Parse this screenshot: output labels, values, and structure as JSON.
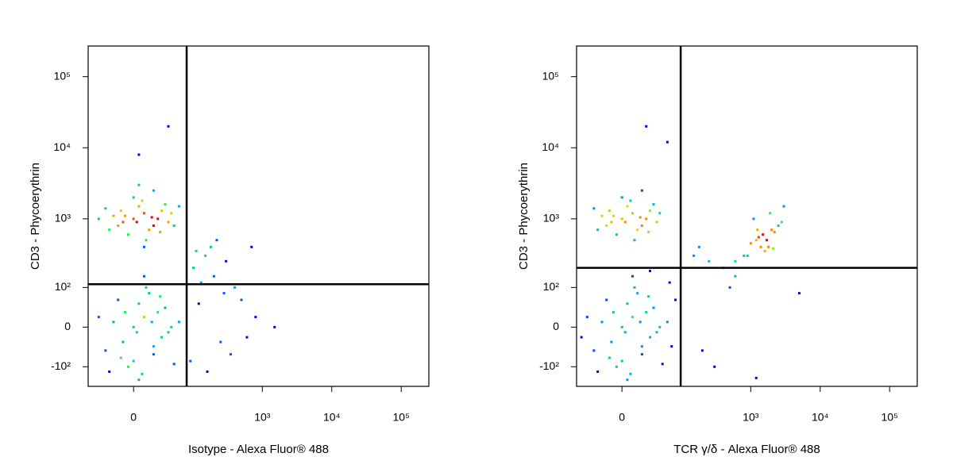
{
  "chart_data": [
    {
      "type": "scatter",
      "xscale": "biexponential",
      "yscale": "biexponential",
      "x_label": "Isotype - Alexa Fluor® 488",
      "y_label": "CD3 - Phycoerythrin",
      "xlim": [
        -60,
        250000
      ],
      "ylim": [
        -200,
        270000
      ],
      "xticks": [
        0,
        {
          "value": 1000,
          "label": "10³"
        },
        {
          "value": 10000,
          "label": "10⁴"
        },
        {
          "value": 100000,
          "label": "10⁵"
        }
      ],
      "yticks": [
        {
          "value": -100,
          "label": "-10²"
        },
        0,
        {
          "value": 100,
          "label": "10²"
        },
        {
          "value": 1000,
          "label": "10³"
        },
        {
          "value": 10000,
          "label": "10⁴"
        },
        {
          "value": 100000,
          "label": "10⁵"
        }
      ],
      "gates": {
        "x": 79,
        "y": 113
      },
      "x": [
        0,
        10,
        -10,
        20,
        5,
        -20,
        30,
        15,
        -5,
        25,
        40,
        -30,
        8,
        -15,
        35,
        0,
        12,
        -25,
        45,
        20,
        -8,
        3,
        18,
        -12,
        28,
        50,
        -40,
        10,
        60,
        5,
        0,
        10,
        -10,
        20,
        5,
        -20,
        30,
        15,
        -5,
        25,
        40,
        -30,
        8,
        -15,
        35,
        0,
        12,
        -25,
        45,
        20,
        -8,
        3,
        18,
        -12,
        28,
        50,
        -40,
        10,
        60,
        5,
        100,
        150,
        200,
        300,
        120,
        250,
        400,
        180,
        500,
        90,
        350,
        700,
        130,
        220,
        800,
        600,
        160,
        280,
        1500,
        110,
        5,
        40
      ],
      "y": [
        1000,
        1200,
        900,
        800,
        1500,
        1100,
        1300,
        700,
        600,
        1000,
        900,
        1400,
        1800,
        800,
        1600,
        2000,
        500,
        700,
        1200,
        2500,
        1100,
        900,
        1050,
        1300,
        650,
        800,
        1000,
        400,
        1500,
        3000,
        0,
        20,
        -30,
        -60,
        50,
        10,
        -20,
        80,
        -100,
        30,
        -10,
        -50,
        -130,
        60,
        40,
        -80,
        100,
        -120,
        0,
        -40,
        30,
        -10,
        10,
        -70,
        70,
        -90,
        20,
        150,
        10,
        -160,
        200,
        300,
        150,
        250,
        50,
        -30,
        100,
        400,
        60,
        -80,
        -60,
        400,
        120,
        500,
        20,
        -20,
        -120,
        80,
        0,
        350,
        8000,
        20000
      ]
    },
    {
      "type": "scatter",
      "xscale": "biexponential",
      "yscale": "biexponential",
      "x_label": "TCR γ/δ - Alexa Fluor® 488",
      "y_label": "CD3 - Phycoerythrin",
      "xlim": [
        -60,
        250000
      ],
      "ylim": [
        -200,
        270000
      ],
      "xticks": [
        0,
        {
          "value": 1000,
          "label": "10³"
        },
        {
          "value": 10000,
          "label": "10⁴"
        },
        {
          "value": 100000,
          "label": "10⁵"
        }
      ],
      "yticks": [
        {
          "value": -100,
          "label": "-10²"
        },
        0,
        {
          "value": 100,
          "label": "10²"
        },
        {
          "value": 1000,
          "label": "10³"
        },
        {
          "value": 10000,
          "label": "10⁴"
        },
        {
          "value": 100000,
          "label": "10⁵"
        }
      ],
      "gates": {
        "x": 96,
        "y": 200
      },
      "x": [
        0,
        10,
        -10,
        20,
        5,
        -20,
        30,
        15,
        -5,
        25,
        40,
        -30,
        8,
        -15,
        35,
        0,
        12,
        -25,
        45,
        20,
        -8,
        3,
        18,
        -12,
        28,
        0,
        10,
        -10,
        20,
        5,
        -20,
        30,
        15,
        -5,
        25,
        40,
        -30,
        8,
        -15,
        35,
        0,
        12,
        -25,
        45,
        20,
        -8,
        3,
        18,
        -12,
        28,
        50,
        -40,
        10,
        60,
        5,
        70,
        80,
        -50,
        65,
        30,
        1200,
        1500,
        1800,
        2000,
        1000,
        2500,
        1300,
        1600,
        900,
        2200,
        1100,
        1700,
        1400,
        2800,
        800,
        1900,
        600,
        3000,
        1250,
        2100,
        150,
        250,
        400,
        200,
        600,
        300,
        500,
        180,
        1200,
        5000,
        25,
        60
      ],
      "y": [
        1000,
        1200,
        900,
        800,
        1500,
        1100,
        1300,
        700,
        600,
        1000,
        900,
        1400,
        1800,
        800,
        1600,
        2000,
        500,
        700,
        1200,
        2500,
        1100,
        900,
        1050,
        1300,
        650,
        0,
        20,
        -30,
        -60,
        50,
        10,
        -20,
        80,
        -100,
        30,
        -10,
        -50,
        -130,
        60,
        40,
        -80,
        100,
        -120,
        0,
        -40,
        30,
        -10,
        10,
        -70,
        70,
        -90,
        20,
        150,
        10,
        -160,
        -40,
        60,
        -20,
        120,
        180,
        500,
        600,
        400,
        700,
        450,
        800,
        550,
        350,
        300,
        650,
        1000,
        500,
        400,
        900,
        300,
        1200,
        250,
        1500,
        700,
        380,
        300,
        250,
        200,
        -50,
        150,
        -100,
        100,
        400,
        -150,
        80,
        20000,
        12000
      ]
    }
  ]
}
